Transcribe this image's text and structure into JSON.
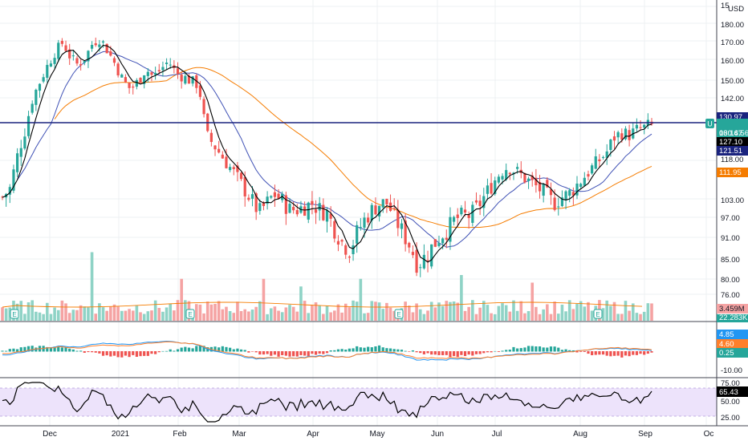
{
  "colors": {
    "up": "#26a69a",
    "down": "#ef5350",
    "up_vol": "#8fd3c6",
    "down_vol": "#f5a3a3",
    "ma_short": "#000000",
    "ma_mid": "#3f51b5",
    "ma_long": "#f57c00",
    "hline": "#1a237e",
    "macd": "#2196f3",
    "signal": "#ff7f2a",
    "rsi": "#000000",
    "rsi_band": "#e9ddfb",
    "grid": "#eef0f3"
  },
  "currency": "USD",
  "top_clipped_label": "15",
  "price_axis": [
    "180.00",
    "170.00",
    "160.00",
    "150.00",
    "142.00",
    "118.00",
    "103.00",
    "97.00",
    "91.00",
    "85.00",
    "80.00",
    "76.00"
  ],
  "price_tags": {
    "hline": "130.97",
    "last": "130.47",
    "countdown": "06:16:56",
    "ma_short": "127.10",
    "ma_mid": "121.51",
    "ma_long": "111.95",
    "volume": "3.459M",
    "volume_ma": "22.283K"
  },
  "alert_marker": "U",
  "earnings_marker": "E",
  "macd_panel": {
    "axis": [
      "-10.00"
    ],
    "tags": [
      "4.85",
      "4.60",
      "0.25"
    ]
  },
  "rsi_panel": {
    "axis": [
      "75.00",
      "50.00",
      "25.00"
    ],
    "tags": [
      "65.43"
    ]
  },
  "time_axis": [
    "Dec",
    "2021",
    "Feb",
    "Mar",
    "Apr",
    "May",
    "Jun",
    "Jul",
    "Aug",
    "Sep",
    "Oc"
  ],
  "chart_data": {
    "type": "candlestick",
    "horizontal_line": 130.97,
    "last_price": 130.47,
    "moving_averages": [
      {
        "key": "ma_short",
        "value": 127.1
      },
      {
        "key": "ma_mid",
        "value": 121.51
      },
      {
        "key": "ma_long",
        "value": 111.95
      }
    ],
    "macd": {
      "macd": 4.85,
      "signal": 4.6,
      "histogram": 0.25
    },
    "rsi": 65.43,
    "close_path": [
      [
        0,
        103
      ],
      [
        8,
        106
      ],
      [
        16,
        118
      ],
      [
        24,
        128
      ],
      [
        32,
        142
      ],
      [
        40,
        150
      ],
      [
        48,
        158
      ],
      [
        56,
        165
      ],
      [
        64,
        170
      ],
      [
        72,
        162
      ],
      [
        80,
        158
      ],
      [
        88,
        162
      ],
      [
        96,
        170
      ],
      [
        104,
        172
      ],
      [
        112,
        165
      ],
      [
        120,
        158
      ],
      [
        128,
        150
      ],
      [
        136,
        146
      ],
      [
        144,
        150
      ],
      [
        152,
        156
      ],
      [
        160,
        152
      ],
      [
        168,
        156
      ],
      [
        176,
        160
      ],
      [
        184,
        154
      ],
      [
        192,
        152
      ],
      [
        200,
        150
      ],
      [
        208,
        148
      ],
      [
        216,
        126
      ],
      [
        224,
        122
      ],
      [
        232,
        118
      ],
      [
        240,
        114
      ],
      [
        248,
        110
      ],
      [
        256,
        106
      ],
      [
        264,
        102
      ],
      [
        272,
        98
      ],
      [
        280,
        101
      ],
      [
        288,
        104
      ],
      [
        296,
        102
      ],
      [
        304,
        99
      ],
      [
        312,
        99
      ],
      [
        320,
        100
      ],
      [
        328,
        101
      ],
      [
        336,
        99
      ],
      [
        344,
        98
      ],
      [
        352,
        93
      ],
      [
        360,
        89
      ],
      [
        368,
        87
      ],
      [
        376,
        92
      ],
      [
        384,
        96
      ],
      [
        392,
        99
      ],
      [
        400,
        101
      ],
      [
        408,
        101
      ],
      [
        416,
        96
      ],
      [
        424,
        92
      ],
      [
        432,
        88
      ],
      [
        440,
        83
      ],
      [
        448,
        85
      ],
      [
        456,
        88
      ],
      [
        464,
        91
      ],
      [
        472,
        93
      ],
      [
        480,
        96
      ],
      [
        488,
        97
      ],
      [
        496,
        97
      ],
      [
        504,
        100
      ],
      [
        512,
        104
      ],
      [
        520,
        108
      ],
      [
        528,
        112
      ],
      [
        536,
        114
      ],
      [
        544,
        112
      ],
      [
        552,
        110
      ],
      [
        560,
        108
      ],
      [
        568,
        106
      ],
      [
        576,
        104
      ],
      [
        584,
        101
      ],
      [
        592,
        103
      ],
      [
        600,
        104
      ],
      [
        608,
        107
      ],
      [
        616,
        110
      ],
      [
        624,
        113
      ],
      [
        632,
        116
      ],
      [
        640,
        119
      ],
      [
        648,
        125
      ],
      [
        656,
        127
      ],
      [
        664,
        126
      ],
      [
        672,
        128
      ],
      [
        680,
        129
      ],
      [
        688,
        130.5
      ]
    ],
    "volume_spikes": [
      {
        "x_day": 95,
        "relative": 0.9
      },
      {
        "x_day": 190,
        "relative": 0.55
      },
      {
        "x_day": 278,
        "relative": 0.55
      },
      {
        "x_day": 316,
        "relative": 0.45
      },
      {
        "x_day": 380,
        "relative": 0.55
      },
      {
        "x_day": 485,
        "relative": 0.6
      },
      {
        "x_day": 560,
        "relative": 0.5
      }
    ]
  }
}
